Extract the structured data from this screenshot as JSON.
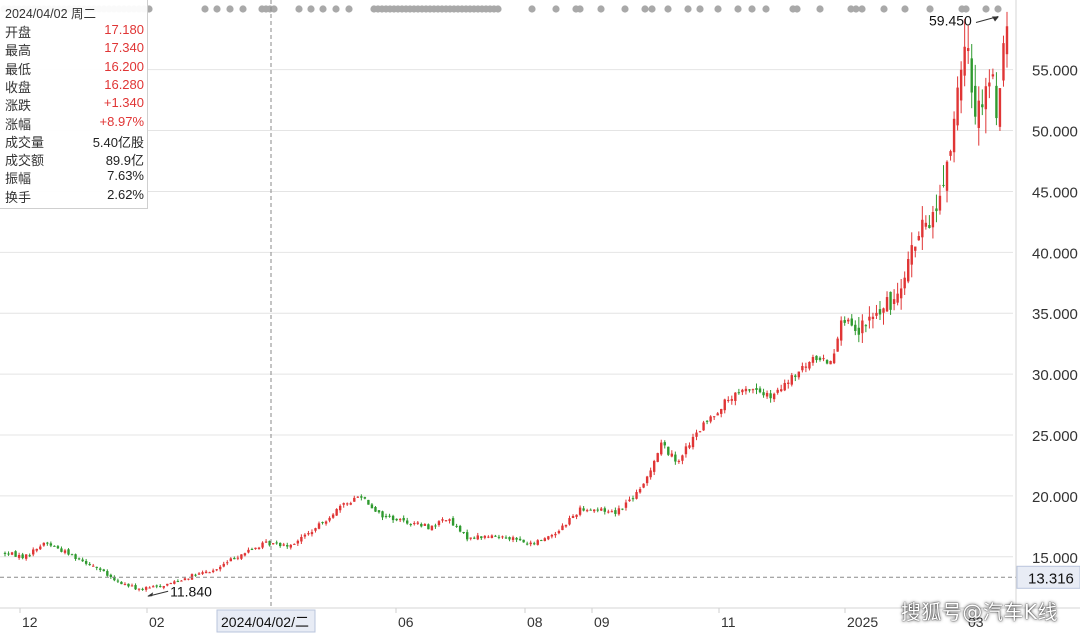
{
  "info": {
    "date_label": "2024/04/02 周二",
    "rows": [
      {
        "label": "开盘",
        "value": "17.180",
        "tone": "up"
      },
      {
        "label": "最高",
        "value": "17.340",
        "tone": "up"
      },
      {
        "label": "最低",
        "value": "16.200",
        "tone": "up"
      },
      {
        "label": "收盘",
        "value": "16.280",
        "tone": "up"
      },
      {
        "label": "涨跌",
        "value": "+1.340",
        "tone": "up"
      },
      {
        "label": "涨幅",
        "value": "+8.97%",
        "tone": "up"
      },
      {
        "label": "成交量",
        "value": "5.40亿股",
        "tone": "neutral"
      },
      {
        "label": "成交额",
        "value": "89.9亿",
        "tone": "neutral"
      },
      {
        "label": "振幅",
        "value": "7.63%",
        "tone": "neutral"
      },
      {
        "label": "换手",
        "value": "2.62%",
        "tone": "neutral"
      }
    ]
  },
  "crosshair": {
    "date_label": "2024/04/02/二",
    "price_label": "13.316",
    "price": 13.316
  },
  "watermark": "搜狐号@汽车K线",
  "colors": {
    "up": "#e03535",
    "down": "#2f9a2f",
    "grid": "#e4e4e4",
    "axis_text": "#333333"
  },
  "chart_data": {
    "type": "candlestick",
    "y_axis": {
      "side": "right",
      "ticks": [
        15,
        20,
        25,
        30,
        35,
        40,
        45,
        50,
        55
      ],
      "tick_labels": [
        "15.000",
        "20.000",
        "25.000",
        "30.000",
        "35.000",
        "40.000",
        "45.000",
        "50.000",
        "55.000"
      ],
      "range": [
        12.6,
        59.9
      ]
    },
    "x_axis": {
      "labels": [
        "12",
        "02",
        "06",
        "08",
        "09",
        "11",
        "2025",
        "03"
      ]
    },
    "annotations": [
      {
        "text": "11.840",
        "kind": "min_low",
        "value": 11.84
      },
      {
        "text": "59.450",
        "kind": "max_high",
        "value": 59.45
      }
    ],
    "price_path": [
      {
        "t": 0,
        "p": 15.3
      },
      {
        "t": 0.02,
        "p": 15.0
      },
      {
        "t": 0.04,
        "p": 16.2
      },
      {
        "t": 0.065,
        "p": 15.2
      },
      {
        "t": 0.09,
        "p": 14.2
      },
      {
        "t": 0.11,
        "p": 13.0
      },
      {
        "t": 0.135,
        "p": 12.3
      },
      {
        "t": 0.16,
        "p": 12.7
      },
      {
        "t": 0.185,
        "p": 13.4
      },
      {
        "t": 0.21,
        "p": 13.9
      },
      {
        "t": 0.23,
        "p": 15.0
      },
      {
        "t": 0.26,
        "p": 16.1
      },
      {
        "t": 0.285,
        "p": 16.0
      },
      {
        "t": 0.31,
        "p": 17.3
      },
      {
        "t": 0.33,
        "p": 18.8
      },
      {
        "t": 0.355,
        "p": 20.1
      },
      {
        "t": 0.375,
        "p": 18.4
      },
      {
        "t": 0.4,
        "p": 17.9
      },
      {
        "t": 0.425,
        "p": 17.4
      },
      {
        "t": 0.44,
        "p": 18.2
      },
      {
        "t": 0.46,
        "p": 16.6
      },
      {
        "t": 0.5,
        "p": 16.7
      },
      {
        "t": 0.525,
        "p": 16.0
      },
      {
        "t": 0.55,
        "p": 17.0
      },
      {
        "t": 0.575,
        "p": 19.0
      },
      {
        "t": 0.61,
        "p": 18.7
      },
      {
        "t": 0.635,
        "p": 20.5
      },
      {
        "t": 0.655,
        "p": 24.3
      },
      {
        "t": 0.67,
        "p": 22.8
      },
      {
        "t": 0.695,
        "p": 25.6
      },
      {
        "t": 0.72,
        "p": 27.8
      },
      {
        "t": 0.745,
        "p": 28.9
      },
      {
        "t": 0.765,
        "p": 28.0
      },
      {
        "t": 0.79,
        "p": 30.0
      },
      {
        "t": 0.81,
        "p": 31.4
      },
      {
        "t": 0.825,
        "p": 31.0
      },
      {
        "t": 0.835,
        "p": 34.8
      },
      {
        "t": 0.85,
        "p": 33.2
      },
      {
        "t": 0.865,
        "p": 34.6
      },
      {
        "t": 0.885,
        "p": 35.8
      },
      {
        "t": 0.905,
        "p": 40.3
      },
      {
        "t": 0.93,
        "p": 43.7
      },
      {
        "t": 0.945,
        "p": 49.5
      },
      {
        "t": 0.96,
        "p": 56.8
      },
      {
        "t": 0.97,
        "p": 51.2
      },
      {
        "t": 0.98,
        "p": 54.6
      },
      {
        "t": 0.99,
        "p": 52.3
      },
      {
        "t": 1.0,
        "p": 58.4
      }
    ]
  }
}
